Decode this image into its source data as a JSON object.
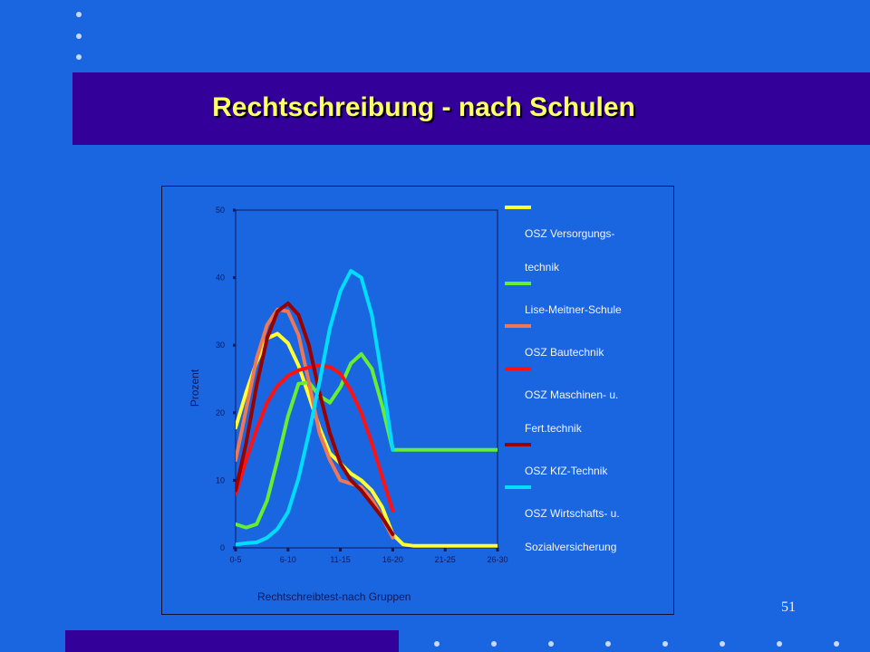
{
  "slide": {
    "title": "Rechtschreibung - nach Schulen",
    "page_number": "51",
    "colors": {
      "background": "#1a66e0",
      "band": "#330099",
      "title": "#ffff66"
    }
  },
  "chart_data": {
    "type": "line",
    "title": "",
    "xlabel": "Rechtschreibtest-nach Gruppen",
    "ylabel": "Prozent",
    "ylim": [
      0,
      50
    ],
    "yticks": [
      0,
      10,
      20,
      30,
      40,
      50
    ],
    "categories": [
      "0-5",
      "6-10",
      "11-15",
      "16-20",
      "21-25",
      "26-30"
    ],
    "x_range": [
      0,
      25
    ],
    "grid": false,
    "legend_position": "right",
    "series": [
      {
        "name_lines": [
          "OSZ Versorgungs-",
          "technik"
        ],
        "color": "#ffff33",
        "x": [
          0,
          1,
          2,
          3,
          4,
          5,
          6,
          7,
          8,
          9,
          10,
          11,
          12,
          13,
          14,
          15,
          16,
          17,
          18,
          19,
          20,
          21,
          22,
          23,
          24,
          25
        ],
        "values": [
          17.8,
          23,
          27.5,
          31,
          31.7,
          30.3,
          27,
          22.5,
          17.8,
          14,
          12.5,
          11,
          10,
          8.5,
          6,
          2,
          0.5,
          0.3,
          0.3,
          0.3,
          0.3,
          0.3,
          0.3,
          0.3,
          0.3,
          0.3
        ]
      },
      {
        "name_lines": [
          "Lise-Meitner-Schule"
        ],
        "color": "#66ee33",
        "x": [
          0,
          1,
          2,
          3,
          4,
          5,
          6,
          7,
          8,
          9,
          10,
          11,
          12,
          13,
          14,
          15,
          16,
          17,
          18,
          19,
          20,
          21,
          22,
          23,
          24,
          25
        ],
        "values": [
          3.5,
          3,
          3.5,
          7,
          13,
          19.5,
          24.3,
          24.5,
          22.5,
          21.5,
          23.8,
          27.3,
          28.7,
          26.5,
          21,
          14.5,
          14.5,
          14.5,
          14.5,
          14.5,
          14.5,
          14.5,
          14.5,
          14.5,
          14.5,
          14.5
        ]
      },
      {
        "name_lines": [
          "OSZ Bautechnik"
        ],
        "color": "#ee7755",
        "x": [
          0,
          1,
          2,
          3,
          4,
          5,
          6,
          7,
          8,
          9,
          10,
          11,
          12,
          13,
          14,
          15
        ],
        "values": [
          13,
          20.5,
          28,
          33,
          35.3,
          35,
          31.5,
          24.5,
          17,
          13,
          10,
          9.5,
          9,
          7.2,
          4.5,
          1.5
        ]
      },
      {
        "name_lines": [
          "OSZ Maschinen- u.",
          "Fert.technik"
        ],
        "color": "#ff1111",
        "x": [
          0,
          1,
          2,
          3,
          4,
          5,
          6,
          7,
          8,
          9,
          10,
          11,
          12,
          13,
          14,
          15
        ],
        "values": [
          8,
          13,
          17.5,
          21.5,
          24,
          25.5,
          26.3,
          26.7,
          27,
          26.8,
          25.8,
          23.3,
          20,
          15.5,
          10.5,
          5.5
        ]
      },
      {
        "name_lines": [
          "OSZ KfZ-Technik"
        ],
        "color": "#990000",
        "x": [
          0,
          1,
          2,
          3,
          4,
          5,
          6,
          7,
          8,
          9,
          10,
          11,
          12,
          13,
          14,
          15
        ],
        "values": [
          8.5,
          15.5,
          24,
          31,
          35,
          36.2,
          34.5,
          30,
          23,
          17,
          12.5,
          10,
          8.5,
          6.5,
          4.5,
          2
        ]
      },
      {
        "name_lines": [
          "OSZ Wirtschafts- u.",
          "Sozialversicherung"
        ],
        "color": "#00ddff",
        "x": [
          0,
          1,
          2,
          3,
          4,
          5,
          6,
          7,
          8,
          9,
          10,
          11,
          12,
          13,
          14,
          15
        ],
        "values": [
          0.5,
          0.7,
          0.8,
          1.5,
          2.8,
          5.3,
          10.3,
          17,
          24.5,
          32.5,
          38,
          41,
          40,
          34.5,
          25,
          14.5
        ]
      }
    ]
  }
}
